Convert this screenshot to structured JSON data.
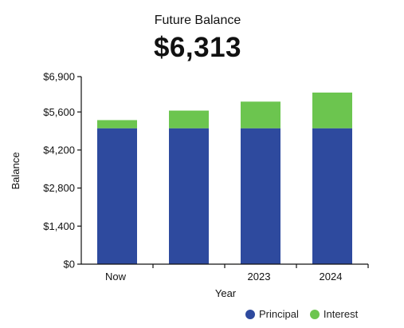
{
  "header": {
    "title": "Future Balance",
    "value": "$6,313"
  },
  "colors": {
    "principal": "#2e4a9e",
    "interest": "#6cc54f",
    "axis": "#111111"
  },
  "legend": {
    "principal_label": "Principal",
    "interest_label": "Interest"
  },
  "chart_data": {
    "type": "bar",
    "stacked": true,
    "title": "",
    "xlabel": "Year",
    "ylabel": "Balance",
    "ylim": [
      0,
      6900
    ],
    "yticks": [
      0,
      1400,
      2800,
      4200,
      5600,
      6900
    ],
    "ytick_labels": [
      "$0",
      "$1,400",
      "$2,800",
      "$4,200",
      "$5,600",
      "$6,900"
    ],
    "categories": [
      "Now",
      "",
      "2023",
      "2024"
    ],
    "series": [
      {
        "name": "Principal",
        "values": [
          5000,
          5000,
          5000,
          5000
        ]
      },
      {
        "name": "Interest",
        "values": [
          300,
          650,
          980,
          1313
        ]
      }
    ],
    "grid": false,
    "legend_position": "bottom-right"
  }
}
